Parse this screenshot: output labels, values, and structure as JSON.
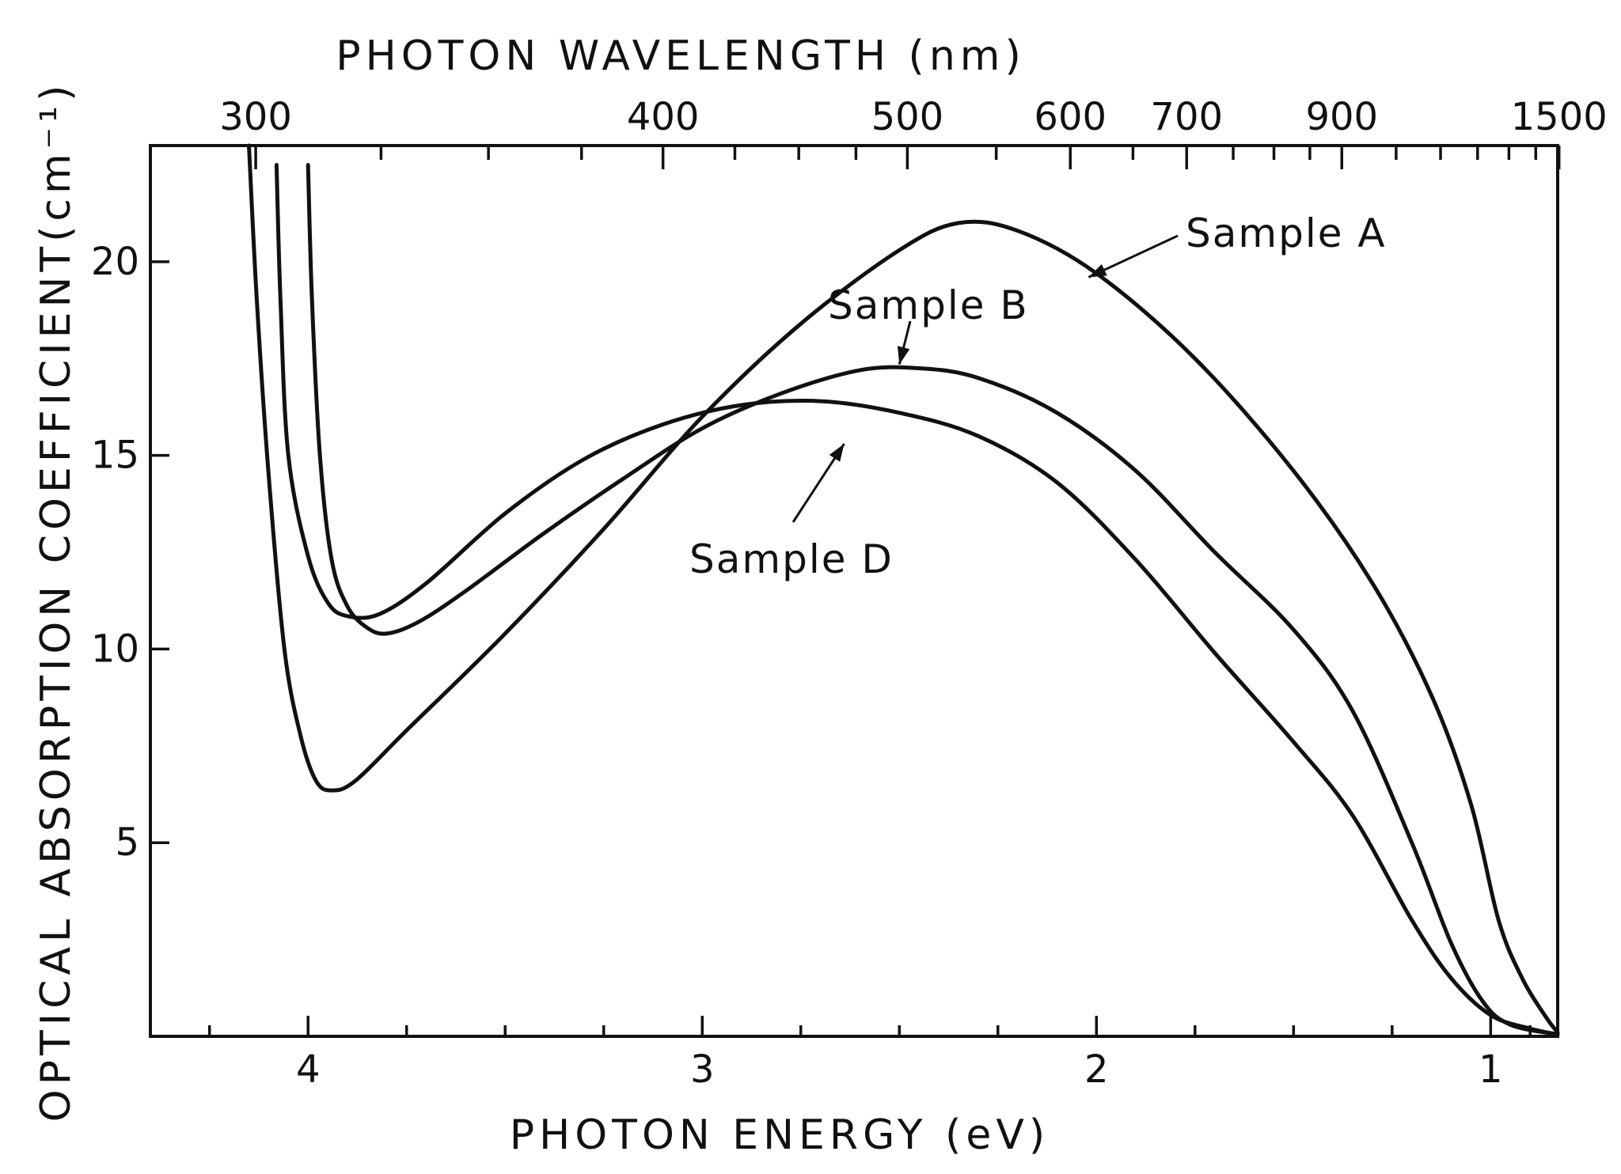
{
  "chart_data": {
    "type": "line",
    "title": "PHOTON WAVELENGTH (nm)",
    "xlabel": "PHOTON ENERGY (eV)",
    "ylabel": "OPTICAL ABSORPTION COEFFICIENT(cm⁻¹)",
    "xlim": [
      4.4,
      0.83
    ],
    "ylim": [
      0,
      23
    ],
    "x_axis_reversed": true,
    "x_ticks": [
      4,
      3,
      2,
      1
    ],
    "x_tick_labels": [
      "4",
      "3",
      "2",
      "1"
    ],
    "x_minor_ticks": [
      4.5,
      4.25,
      3.75,
      3.5,
      3.25,
      2.75,
      2.5,
      2.25,
      1.75,
      1.5,
      1.25,
      0.9
    ],
    "y_ticks": [
      5,
      10,
      15,
      20
    ],
    "y_tick_labels": [
      "5",
      "10",
      "15",
      "20"
    ],
    "top_axis": {
      "label": "PHOTON WAVELENGTH (nm)",
      "labeled_ticks_nm": [
        300,
        400,
        500,
        600,
        700,
        900,
        1500
      ],
      "tick_labels": [
        "300",
        "400",
        "500",
        "600",
        "700",
        "900",
        "1500"
      ],
      "minor_ticks_nm": [
        325,
        350,
        375,
        425,
        450,
        475,
        550,
        650,
        750,
        800,
        850,
        1000,
        1100,
        1200,
        1300,
        1400
      ]
    },
    "grid": false,
    "series": [
      {
        "name": "Sample A",
        "points": [
          [
            4.15,
            23
          ],
          [
            4.13,
            19
          ],
          [
            4.1,
            14.5
          ],
          [
            4.06,
            10
          ],
          [
            4.02,
            7.8
          ],
          [
            3.98,
            6.6
          ],
          [
            3.94,
            6.35
          ],
          [
            3.88,
            6.6
          ],
          [
            3.75,
            7.9
          ],
          [
            3.5,
            10.4
          ],
          [
            3.25,
            13.1
          ],
          [
            3.0,
            16.0
          ],
          [
            2.75,
            18.4
          ],
          [
            2.5,
            20.3
          ],
          [
            2.35,
            21.0
          ],
          [
            2.2,
            20.8
          ],
          [
            2.0,
            19.7
          ],
          [
            1.75,
            17.5
          ],
          [
            1.5,
            14.6
          ],
          [
            1.3,
            11.7
          ],
          [
            1.15,
            8.8
          ],
          [
            1.05,
            6.0
          ],
          [
            0.98,
            3.0
          ],
          [
            0.92,
            1.5
          ],
          [
            0.86,
            0.5
          ],
          [
            0.83,
            0.1
          ]
        ]
      },
      {
        "name": "Sample B",
        "points": [
          [
            4.0,
            22.5
          ],
          [
            3.99,
            19
          ],
          [
            3.97,
            15
          ],
          [
            3.94,
            12.3
          ],
          [
            3.9,
            11.1
          ],
          [
            3.85,
            10.55
          ],
          [
            3.8,
            10.4
          ],
          [
            3.72,
            10.7
          ],
          [
            3.6,
            11.5
          ],
          [
            3.4,
            13.0
          ],
          [
            3.2,
            14.4
          ],
          [
            3.0,
            15.7
          ],
          [
            2.8,
            16.6
          ],
          [
            2.6,
            17.2
          ],
          [
            2.45,
            17.25
          ],
          [
            2.3,
            17.0
          ],
          [
            2.1,
            16.1
          ],
          [
            1.9,
            14.6
          ],
          [
            1.7,
            12.5
          ],
          [
            1.5,
            10.5
          ],
          [
            1.35,
            8.4
          ],
          [
            1.2,
            5.0
          ],
          [
            1.1,
            2.4
          ],
          [
            1.02,
            0.9
          ],
          [
            0.95,
            0.3
          ],
          [
            0.83,
            0.05
          ]
        ]
      },
      {
        "name": "Sample D",
        "points": [
          [
            4.08,
            22.5
          ],
          [
            4.07,
            19
          ],
          [
            4.05,
            15
          ],
          [
            4.0,
            12.4
          ],
          [
            3.95,
            11.2
          ],
          [
            3.9,
            10.85
          ],
          [
            3.82,
            10.9
          ],
          [
            3.7,
            11.7
          ],
          [
            3.5,
            13.5
          ],
          [
            3.3,
            14.9
          ],
          [
            3.1,
            15.8
          ],
          [
            2.9,
            16.3
          ],
          [
            2.7,
            16.4
          ],
          [
            2.5,
            16.1
          ],
          [
            2.3,
            15.5
          ],
          [
            2.1,
            14.3
          ],
          [
            1.9,
            12.3
          ],
          [
            1.7,
            9.9
          ],
          [
            1.5,
            7.6
          ],
          [
            1.35,
            5.7
          ],
          [
            1.2,
            3.0
          ],
          [
            1.1,
            1.5
          ],
          [
            1.0,
            0.55
          ],
          [
            0.9,
            0.2
          ],
          [
            0.83,
            0.05
          ]
        ]
      }
    ],
    "annotations": [
      {
        "text": "Sample A",
        "series": "Sample A",
        "arrow_to": [
          2.02,
          19.6
        ]
      },
      {
        "text": "Sample B",
        "series": "Sample B",
        "arrow_to": [
          2.5,
          17.35
        ]
      },
      {
        "text": "Sample D",
        "series": "Sample D",
        "arrow_to": [
          2.64,
          15.3
        ]
      }
    ]
  }
}
